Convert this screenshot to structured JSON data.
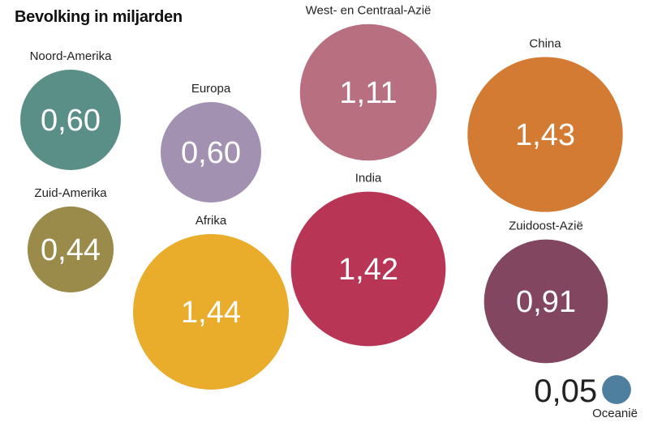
{
  "title": "Bevolking in miljarden",
  "chart_data": {
    "type": "bubble",
    "title": "Bevolking in miljarden",
    "series": [
      {
        "name": "Noord-Amerika",
        "value_label": "0,60",
        "value": 0.6,
        "color": "#5a8f87"
      },
      {
        "name": "Europa",
        "value_label": "0,60",
        "value": 0.6,
        "color": "#a291b0"
      },
      {
        "name": "West- en Centraal-Azië",
        "value_label": "1,11",
        "value": 1.11,
        "color": "#b86f80"
      },
      {
        "name": "China",
        "value_label": "1,43",
        "value": 1.43,
        "color": "#d47b33"
      },
      {
        "name": "Zuid-Amerika",
        "value_label": "0,44",
        "value": 0.44,
        "color": "#9a8b4b"
      },
      {
        "name": "Afrika",
        "value_label": "1,44",
        "value": 1.44,
        "color": "#e9ad2b"
      },
      {
        "name": "India",
        "value_label": "1,42",
        "value": 1.42,
        "color": "#b83556"
      },
      {
        "name": "Zuidoost-Azië",
        "value_label": "0,91",
        "value": 0.91,
        "color": "#824661"
      },
      {
        "name": "Oceanië",
        "value_label": "0,05",
        "value": 0.05,
        "color": "#4e7f9e"
      }
    ]
  }
}
